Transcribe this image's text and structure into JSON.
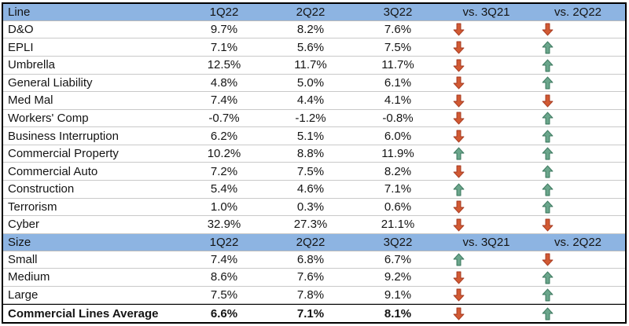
{
  "colors": {
    "header_bg": "#8DB4E2",
    "grid_line": "#C9C9C9",
    "outer_border": "#000000",
    "up": {
      "fill": "#6BA68C",
      "stroke": "#3E7A60"
    },
    "down": {
      "fill": "#D25A33",
      "stroke": "#A93E24"
    }
  },
  "icons": {
    "up": "up-arrow-icon",
    "down": "down-arrow-icon"
  },
  "chart_data": {
    "type": "table",
    "columns": [
      "Line",
      "1Q22",
      "2Q22",
      "3Q22",
      "vs. 3Q21",
      "vs. 2Q22"
    ],
    "sections": [
      {
        "name": "Line",
        "header_cols": [
          "1Q22",
          "2Q22",
          "3Q22",
          "vs. 3Q21",
          "vs. 2Q22"
        ],
        "rows": [
          {
            "label": "D&O",
            "values": [
              "9.7%",
              "8.2%",
              "7.6%"
            ],
            "vs_3q21": "down",
            "vs_2q22": "down"
          },
          {
            "label": "EPLI",
            "values": [
              "7.1%",
              "5.6%",
              "7.5%"
            ],
            "vs_3q21": "down",
            "vs_2q22": "up"
          },
          {
            "label": "Umbrella",
            "values": [
              "12.5%",
              "11.7%",
              "11.7%"
            ],
            "vs_3q21": "down",
            "vs_2q22": "up"
          },
          {
            "label": "General Liability",
            "values": [
              "4.8%",
              "5.0%",
              "6.1%"
            ],
            "vs_3q21": "down",
            "vs_2q22": "up"
          },
          {
            "label": "Med Mal",
            "values": [
              "7.4%",
              "4.4%",
              "4.1%"
            ],
            "vs_3q21": "down",
            "vs_2q22": "down"
          },
          {
            "label": "Workers' Comp",
            "values": [
              "-0.7%",
              "-1.2%",
              "-0.8%"
            ],
            "vs_3q21": "down",
            "vs_2q22": "up"
          },
          {
            "label": "Business Interruption",
            "values": [
              "6.2%",
              "5.1%",
              "6.0%"
            ],
            "vs_3q21": "down",
            "vs_2q22": "up"
          },
          {
            "label": "Commercial Property",
            "values": [
              "10.2%",
              "8.8%",
              "11.9%"
            ],
            "vs_3q21": "up",
            "vs_2q22": "up"
          },
          {
            "label": "Commercial Auto",
            "values": [
              "7.2%",
              "7.5%",
              "8.2%"
            ],
            "vs_3q21": "down",
            "vs_2q22": "up"
          },
          {
            "label": "Construction",
            "values": [
              "5.4%",
              "4.6%",
              "7.1%"
            ],
            "vs_3q21": "up",
            "vs_2q22": "up"
          },
          {
            "label": "Terrorism",
            "values": [
              "1.0%",
              "0.3%",
              "0.6%"
            ],
            "vs_3q21": "down",
            "vs_2q22": "up"
          },
          {
            "label": "Cyber",
            "values": [
              "32.9%",
              "27.3%",
              "21.1%"
            ],
            "vs_3q21": "down",
            "vs_2q22": "down"
          }
        ]
      },
      {
        "name": "Size",
        "header_cols": [
          "1Q22",
          "2Q22",
          "3Q22",
          "vs. 3Q21",
          "vs. 2Q22"
        ],
        "rows": [
          {
            "label": "Small",
            "values": [
              "7.4%",
              "6.8%",
              "6.7%"
            ],
            "vs_3q21": "up",
            "vs_2q22": "down"
          },
          {
            "label": "Medium",
            "values": [
              "8.6%",
              "7.6%",
              "9.2%"
            ],
            "vs_3q21": "down",
            "vs_2q22": "up"
          },
          {
            "label": "Large",
            "values": [
              "7.5%",
              "7.8%",
              "9.1%"
            ],
            "vs_3q21": "down",
            "vs_2q22": "up"
          }
        ]
      }
    ],
    "footer": {
      "label": "Commercial Lines Average",
      "values": [
        "6.6%",
        "7.1%",
        "8.1%"
      ],
      "vs_3q21": "down",
      "vs_2q22": "up"
    }
  }
}
